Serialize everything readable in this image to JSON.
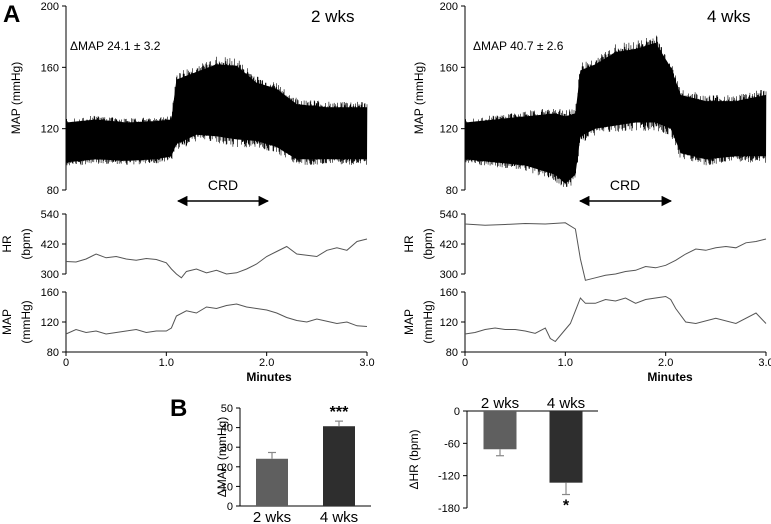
{
  "panel_labels": {
    "a": "A",
    "b": "B"
  },
  "left_column": {
    "title": "2 wks",
    "annotation": "ΔMAP 24.1 ± 3.2",
    "crd_label": "CRD",
    "x_axis_label": "Minutes"
  },
  "right_column": {
    "title": "4 wks",
    "annotation": "ΔMAP 40.7 ± 2.6",
    "crd_label": "CRD",
    "x_axis_label": "Minutes"
  },
  "chart_data": [
    {
      "id": "map-raw-2wks",
      "type": "area",
      "ylabel": "MAP (mmHg)",
      "ylim": [
        80,
        200
      ],
      "yticks": [
        80,
        120,
        160,
        200
      ],
      "xlim": [
        0,
        3.0
      ],
      "crd_window": [
        1.1,
        2.1
      ],
      "x": [
        0,
        0.3,
        0.6,
        0.9,
        1.05,
        1.1,
        1.3,
        1.5,
        1.7,
        1.9,
        2.1,
        2.3,
        2.6,
        3.0
      ],
      "series": [
        {
          "values_low": [
            98,
            100,
            99,
            100,
            102,
            110,
            116,
            115,
            113,
            112,
            108,
            100,
            100,
            100
          ],
          "values_high": [
            124,
            126,
            124,
            125,
            126,
            152,
            157,
            162,
            161,
            150,
            146,
            136,
            134,
            134
          ]
        }
      ]
    },
    {
      "id": "map-raw-4wks",
      "type": "area",
      "ylabel": "MAP (mmHg)",
      "ylim": [
        80,
        200
      ],
      "yticks": [
        80,
        120,
        160,
        200
      ],
      "xlim": [
        0,
        3.0
      ],
      "crd_window": [
        1.1,
        2.1
      ],
      "x": [
        0,
        0.3,
        0.6,
        0.9,
        1.0,
        1.1,
        1.15,
        1.3,
        1.5,
        1.7,
        1.9,
        2.05,
        2.15,
        2.4,
        2.7,
        3.0
      ],
      "series": [
        {
          "values_low": [
            100,
            98,
            96,
            90,
            84,
            90,
            115,
            120,
            122,
            124,
            124,
            120,
            104,
            100,
            102,
            102
          ],
          "values_high": [
            124,
            126,
            128,
            130,
            128,
            130,
            158,
            162,
            170,
            172,
            176,
            160,
            142,
            138,
            138,
            142
          ]
        }
      ]
    },
    {
      "id": "hr-2wks",
      "type": "line",
      "ylabel": "HR (bpm)",
      "ylim": [
        300,
        540
      ],
      "yticks": [
        300,
        420,
        540
      ],
      "x": [
        0,
        0.1,
        0.2,
        0.3,
        0.4,
        0.5,
        0.6,
        0.7,
        0.8,
        0.9,
        1.0,
        1.05,
        1.1,
        1.15,
        1.2,
        1.3,
        1.4,
        1.5,
        1.6,
        1.7,
        1.8,
        1.9,
        2.0,
        2.1,
        2.2,
        2.3,
        2.4,
        2.5,
        2.6,
        2.7,
        2.8,
        2.9,
        3.0
      ],
      "series": [
        {
          "values": [
            350,
            348,
            360,
            380,
            365,
            370,
            360,
            355,
            362,
            358,
            345,
            320,
            300,
            285,
            310,
            320,
            305,
            315,
            300,
            305,
            320,
            340,
            370,
            390,
            410,
            380,
            375,
            370,
            395,
            405,
            395,
            430,
            440
          ]
        }
      ]
    },
    {
      "id": "hr-4wks",
      "type": "line",
      "ylabel": "HR (bpm)",
      "ylim": [
        300,
        540
      ],
      "yticks": [
        300,
        420,
        540
      ],
      "x": [
        0,
        0.2,
        0.4,
        0.6,
        0.8,
        1.0,
        1.1,
        1.15,
        1.2,
        1.3,
        1.4,
        1.5,
        1.6,
        1.7,
        1.8,
        1.9,
        2.0,
        2.1,
        2.2,
        2.3,
        2.4,
        2.5,
        2.6,
        2.7,
        2.8,
        2.9,
        3.0
      ],
      "series": [
        {
          "values": [
            500,
            495,
            498,
            502,
            500,
            505,
            480,
            360,
            275,
            285,
            295,
            300,
            310,
            315,
            330,
            325,
            335,
            355,
            380,
            400,
            395,
            405,
            410,
            405,
            425,
            430,
            440
          ]
        }
      ]
    },
    {
      "id": "map-mean-2wks",
      "type": "line",
      "ylabel": "MAP (mmHg)",
      "ylim": [
        80,
        160
      ],
      "yticks": [
        80,
        120,
        160
      ],
      "x": [
        0,
        0.1,
        0.2,
        0.3,
        0.4,
        0.5,
        0.6,
        0.7,
        0.8,
        0.9,
        1.0,
        1.05,
        1.1,
        1.2,
        1.3,
        1.4,
        1.5,
        1.6,
        1.7,
        1.8,
        1.9,
        2.0,
        2.1,
        2.2,
        2.3,
        2.4,
        2.5,
        2.6,
        2.7,
        2.8,
        2.9,
        3.0
      ],
      "series": [
        {
          "values": [
            104,
            110,
            106,
            108,
            104,
            106,
            108,
            110,
            106,
            108,
            108,
            112,
            128,
            135,
            132,
            140,
            138,
            142,
            144,
            140,
            138,
            136,
            132,
            126,
            122,
            120,
            124,
            121,
            118,
            120,
            115,
            114
          ]
        }
      ]
    },
    {
      "id": "map-mean-4wks",
      "type": "line",
      "ylabel": "MAP (mmHg)",
      "ylim": [
        80,
        160
      ],
      "yticks": [
        80,
        120,
        160
      ],
      "x": [
        0,
        0.1,
        0.2,
        0.3,
        0.4,
        0.5,
        0.6,
        0.7,
        0.8,
        0.85,
        0.9,
        1.0,
        1.05,
        1.1,
        1.15,
        1.2,
        1.3,
        1.4,
        1.5,
        1.6,
        1.7,
        1.8,
        1.9,
        2.0,
        2.05,
        2.1,
        2.2,
        2.3,
        2.5,
        2.7,
        2.9,
        3.0
      ],
      "series": [
        {
          "values": [
            104,
            106,
            110,
            112,
            110,
            110,
            108,
            105,
            112,
            98,
            94,
            110,
            118,
            135,
            152,
            145,
            145,
            150,
            148,
            152,
            145,
            150,
            152,
            154,
            150,
            138,
            120,
            118,
            125,
            118,
            132,
            118
          ]
        }
      ]
    },
    {
      "id": "dmap-bar",
      "type": "bar",
      "ylabel": "ΔMAP (mmHg)",
      "ylim": [
        0,
        50
      ],
      "yticks": [
        0,
        10,
        20,
        30,
        40,
        50
      ],
      "categories": [
        "2 wks",
        "4 wks"
      ],
      "values": [
        24.1,
        40.7
      ],
      "errors": [
        3.2,
        2.6
      ],
      "significance": [
        "",
        "***"
      ],
      "colors": [
        "#5f5f5f",
        "#2e2e2e"
      ]
    },
    {
      "id": "dhr-bar",
      "type": "bar",
      "ylabel": "ΔHR (bpm)",
      "ylim": [
        -180,
        0
      ],
      "yticks": [
        0,
        -60,
        -120,
        -180
      ],
      "categories": [
        "2 wks",
        "4 wks"
      ],
      "values": [
        -71,
        -133
      ],
      "errors": [
        12,
        22
      ],
      "significance": [
        "",
        "*"
      ],
      "colors": [
        "#5f5f5f",
        "#2e2e2e"
      ]
    }
  ]
}
